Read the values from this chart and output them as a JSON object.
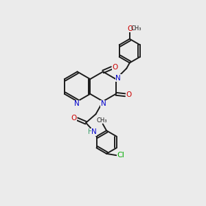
{
  "bg": "#ebebeb",
  "bc": "#1a1a1a",
  "nc": "#0000cc",
  "oc": "#cc0000",
  "clc": "#00aa00",
  "hc": "#339966",
  "lw": 1.4,
  "fs": 7.5,
  "xlim": [
    0,
    10
  ],
  "ylim": [
    0,
    10
  ]
}
